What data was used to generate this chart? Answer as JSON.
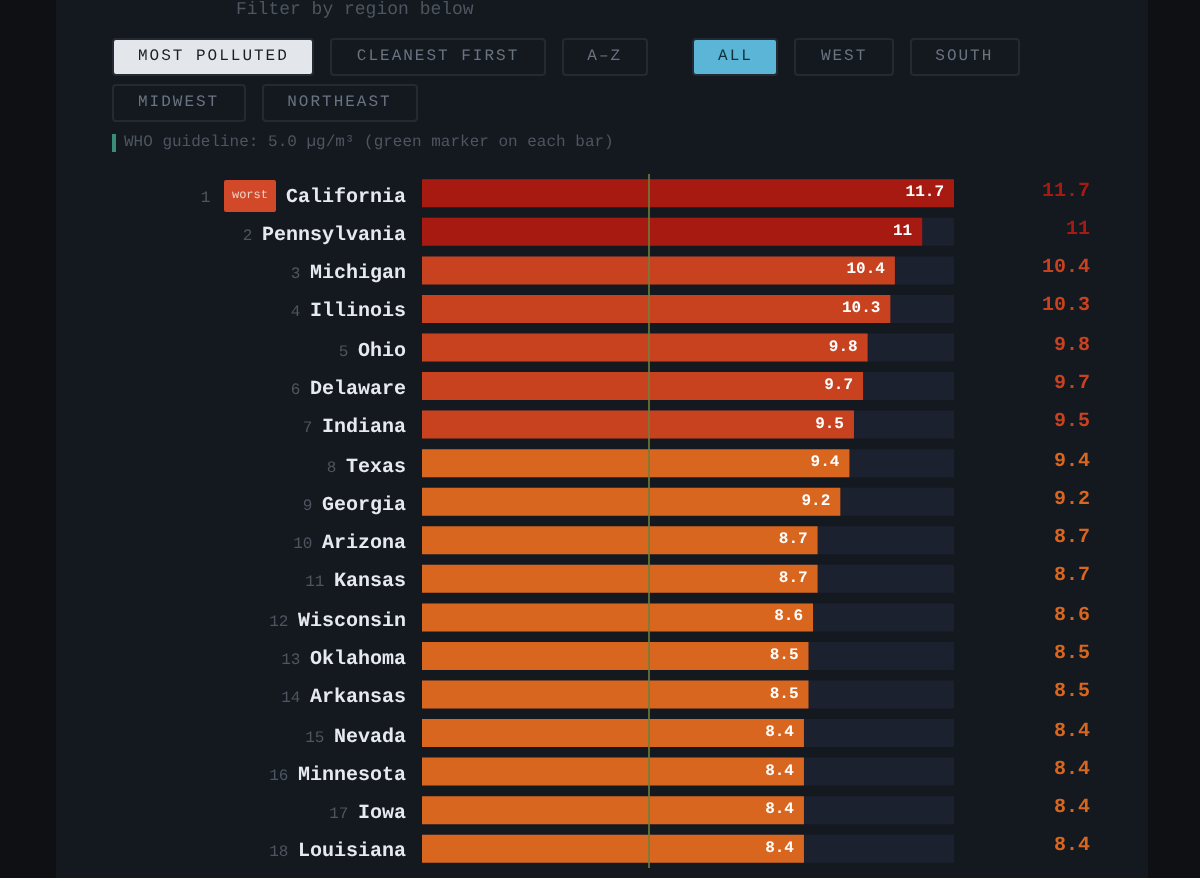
{
  "chart_data": {
    "type": "bar",
    "orientation": "horizontal",
    "subtitle": "Filter by region below",
    "categories": [
      "1 California",
      "2 Pennsylvania",
      "3 Michigan",
      "4 Illinois",
      "5 Ohio",
      "6 Delaware",
      "7 Indiana",
      "8 Texas",
      "9 Georgia",
      "10 Arizona",
      "11 Kansas",
      "12 Wisconsin",
      "13 Oklahoma",
      "14 Arkansas",
      "15 Nevada",
      "16 Minnesota",
      "17 Iowa",
      "18 Louisiana"
    ],
    "values": [
      11.7,
      11,
      10.4,
      10.3,
      9.8,
      9.7,
      9.5,
      9.4,
      9.2,
      8.7,
      8.7,
      8.6,
      8.5,
      8.5,
      8.4,
      8.4,
      8.4,
      8.4
    ],
    "colors": [
      "#a61a12",
      "#a61a12",
      "#c8421f",
      "#c8421f",
      "#c8421f",
      "#c8421f",
      "#c8421f",
      "#d8661f",
      "#d8661f",
      "#d8661f",
      "#d8661f",
      "#d8661f",
      "#d8661f",
      "#d8661f",
      "#d8661f",
      "#d8661f",
      "#d8661f",
      "#d8661f"
    ],
    "data_labels": true,
    "tick_labels": "y",
    "ref_lines": [
      {
        "axis": "x",
        "value": 5.0,
        "label": "WHO guideline: 5.0 µg/m³ (green marker on each bar)",
        "color": "#6b7f3a"
      }
    ],
    "annotations": [
      "MOST POLLUTED",
      "CLEANEST FIRST",
      "A–Z",
      "ALL",
      "WEST",
      "SOUTH",
      "MIDWEST",
      "NORTHEAST",
      "worst",
      {
        "text": "11.7",
        "y": "1 California"
      },
      {
        "text": "11",
        "y": "2 Pennsylvania"
      },
      {
        "text": "10.4",
        "y": "3 Michigan"
      },
      {
        "text": "10.3",
        "y": "4 Illinois"
      },
      {
        "text": "9.8",
        "y": "5 Ohio"
      },
      {
        "text": "9.7",
        "y": "6 Delaware"
      },
      {
        "text": "9.5",
        "y": "7 Indiana"
      },
      {
        "text": "9.4",
        "y": "8 Texas"
      },
      {
        "text": "9.2",
        "y": "9 Georgia"
      },
      {
        "text": "8.7",
        "y": "10 Arizona"
      },
      {
        "text": "8.7",
        "y": "11 Kansas"
      },
      {
        "text": "8.6",
        "y": "12 Wisconsin"
      },
      {
        "text": "8.5",
        "y": "13 Oklahoma"
      },
      {
        "text": "8.5",
        "y": "14 Arkansas"
      },
      {
        "text": "8.4",
        "y": "15 Nevada"
      },
      {
        "text": "8.4",
        "y": "16 Minnesota"
      },
      {
        "text": "8.4",
        "y": "17 Iowa"
      },
      {
        "text": "8.4",
        "y": "18 Louisiana"
      }
    ]
  }
}
